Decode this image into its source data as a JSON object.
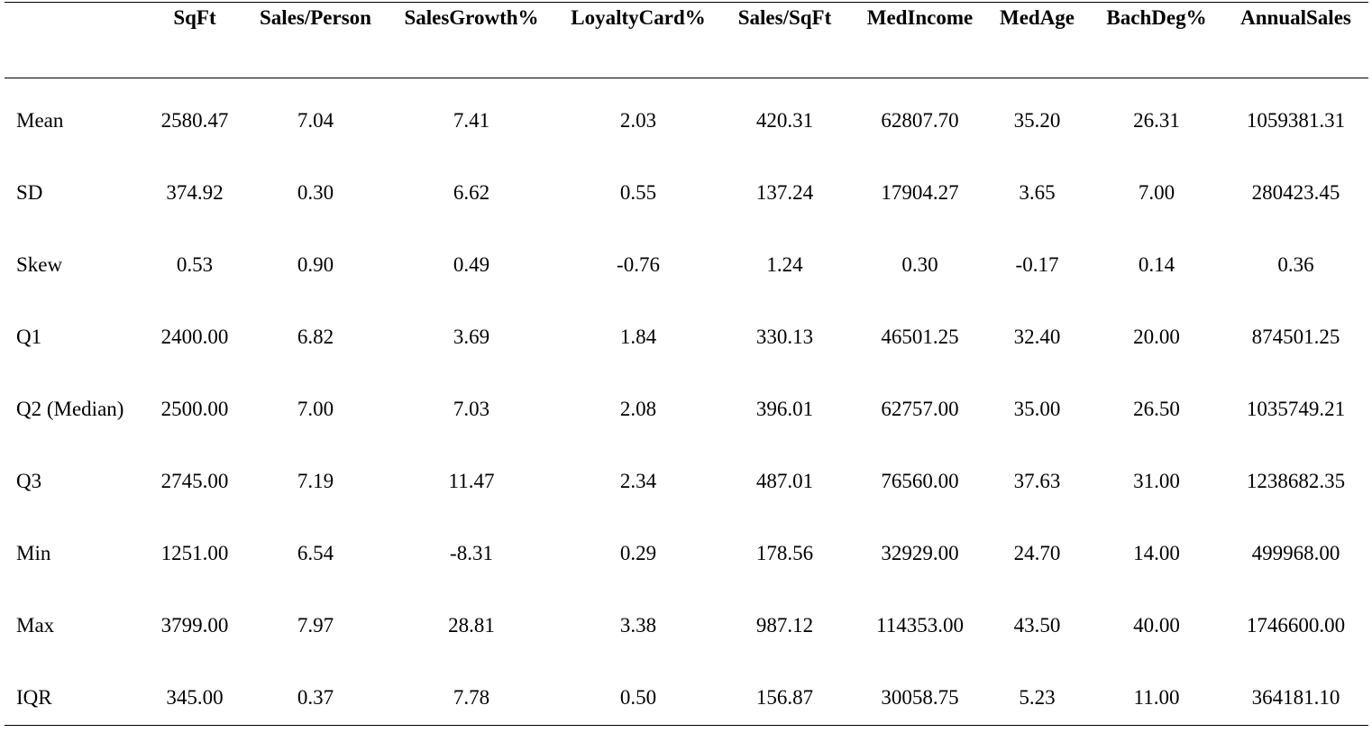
{
  "columns": [
    "",
    "SqFt",
    "Sales/Person",
    "SalesGrowth%",
    "LoyaltyCard%",
    "Sales/SqFt",
    "MedIncome",
    "MedAge",
    "BachDeg%",
    "AnnualSales"
  ],
  "rows": [
    {
      "label": "Mean",
      "values": [
        "2580.47",
        "7.04",
        "7.41",
        "2.03",
        "420.31",
        "62807.70",
        "35.20",
        "26.31",
        "1059381.31"
      ]
    },
    {
      "label": "SD",
      "values": [
        "374.92",
        "0.30",
        "6.62",
        "0.55",
        "137.24",
        "17904.27",
        "3.65",
        "7.00",
        "280423.45"
      ]
    },
    {
      "label": "Skew",
      "values": [
        "0.53",
        "0.90",
        "0.49",
        "-0.76",
        "1.24",
        "0.30",
        "-0.17",
        "0.14",
        "0.36"
      ]
    },
    {
      "label": "Q1",
      "values": [
        "2400.00",
        "6.82",
        "3.69",
        "1.84",
        "330.13",
        "46501.25",
        "32.40",
        "20.00",
        "874501.25"
      ]
    },
    {
      "label": "Q2 (Median)",
      "values": [
        "2500.00",
        "7.00",
        "7.03",
        "2.08",
        "396.01",
        "62757.00",
        "35.00",
        "26.50",
        "1035749.21"
      ]
    },
    {
      "label": "Q3",
      "values": [
        "2745.00",
        "7.19",
        "11.47",
        "2.34",
        "487.01",
        "76560.00",
        "37.63",
        "31.00",
        "1238682.35"
      ]
    },
    {
      "label": "Min",
      "values": [
        "1251.00",
        "6.54",
        "-8.31",
        "0.29",
        "178.56",
        "32929.00",
        "24.70",
        "14.00",
        "499968.00"
      ]
    },
    {
      "label": "Max",
      "values": [
        "3799.00",
        "7.97",
        "28.81",
        "3.38",
        "987.12",
        "114353.00",
        "43.50",
        "40.00",
        "1746600.00"
      ]
    },
    {
      "label": "IQR",
      "values": [
        "345.00",
        "0.37",
        "7.78",
        "0.50",
        "156.87",
        "30058.75",
        "5.23",
        "11.00",
        "364181.10"
      ]
    }
  ]
}
